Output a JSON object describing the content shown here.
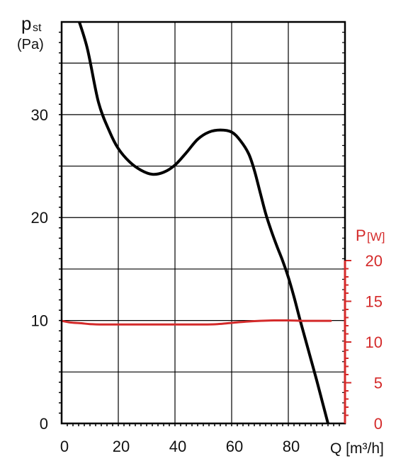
{
  "chart_data": {
    "type": "line",
    "left_axis": {
      "label_main": "p",
      "label_sub": "st",
      "unit": "(Pa)",
      "ylim": [
        0,
        39
      ],
      "ticks": [
        0,
        10,
        20,
        30
      ],
      "tick_labels": [
        "0",
        "10",
        "20",
        "30"
      ]
    },
    "right_axis": {
      "label_main": "P",
      "unit": "[W]",
      "ylim": [
        0,
        20
      ],
      "ticks": [
        0,
        5,
        10,
        15,
        20
      ],
      "tick_labels": [
        "0",
        "5",
        "10",
        "15",
        "20"
      ],
      "color": "#d42a2a"
    },
    "x_axis": {
      "label": "Q [m³/h]",
      "xlim": [
        0,
        100
      ],
      "ticks": [
        0,
        20,
        40,
        60,
        80
      ],
      "tick_labels": [
        "0",
        "20",
        "40",
        "60",
        "80"
      ]
    },
    "grid": true,
    "series": [
      {
        "axis": "left",
        "color": "#000000",
        "x": [
          5,
          9,
          13,
          17,
          20,
          24,
          28,
          32,
          36,
          40,
          44,
          48,
          52,
          56,
          60,
          63,
          66,
          68,
          70,
          72,
          74,
          76,
          78,
          80,
          82,
          84,
          86,
          88,
          90,
          92,
          94
        ],
        "y": [
          40,
          36.5,
          31.2,
          28.3,
          26.7,
          25.4,
          24.6,
          24.2,
          24.4,
          25.1,
          26.3,
          27.6,
          28.3,
          28.5,
          28.3,
          27.5,
          26.2,
          24.6,
          22.5,
          20.4,
          18.7,
          17.2,
          15.8,
          14.2,
          12.3,
          10.2,
          8.2,
          6.2,
          4.2,
          2.1,
          0
        ]
      },
      {
        "axis": "right",
        "color": "#d42a2a",
        "x": [
          0,
          3,
          7,
          10,
          15,
          20,
          30,
          40,
          50,
          55,
          60,
          65,
          70,
          75,
          80,
          85,
          90,
          95
        ],
        "y": [
          12.6,
          12.4,
          12.3,
          12.2,
          12.15,
          12.15,
          12.15,
          12.15,
          12.15,
          12.2,
          12.35,
          12.5,
          12.6,
          12.65,
          12.65,
          12.6,
          12.6,
          12.6
        ]
      }
    ]
  }
}
